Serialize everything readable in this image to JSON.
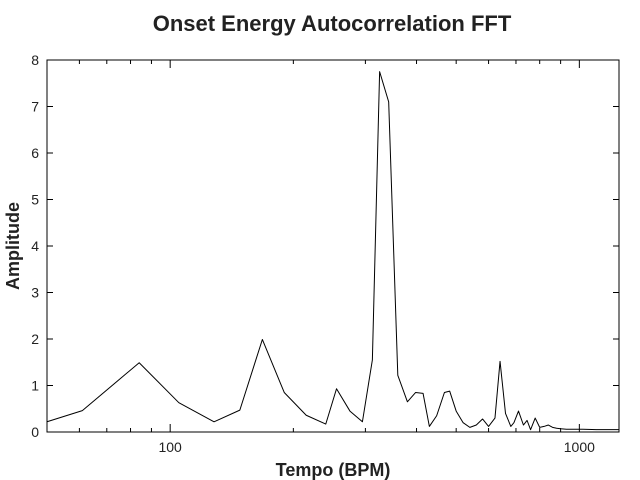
{
  "chart_data": {
    "type": "line",
    "title": "Onset Energy Autocorrelation FFT",
    "xlabel": "Tempo (BPM)",
    "ylabel": "Amplitude",
    "x_scale": "log",
    "xlim": [
      50,
      1250
    ],
    "ylim": [
      0,
      8
    ],
    "x_ticks": [
      100,
      1000
    ],
    "x_tick_labels": [
      "100",
      "1000"
    ],
    "y_ticks": [
      0,
      1,
      2,
      3,
      4,
      5,
      6,
      7,
      8
    ],
    "y_tick_labels": [
      "0",
      "1",
      "2",
      "3",
      "4",
      "5",
      "6",
      "7",
      "8"
    ],
    "grid": false,
    "legend": "none",
    "line_color": "#000000",
    "series": [
      {
        "x": [
          50,
          61,
          84,
          105,
          128,
          148,
          168,
          190,
          215,
          240,
          255,
          275,
          295,
          312,
          325,
          342,
          360,
          380,
          398,
          415,
          430,
          448,
          468,
          482,
          500,
          520,
          540,
          560,
          580,
          600,
          622,
          640,
          660,
          680,
          692,
          710,
          730,
          745,
          760,
          780,
          800,
          820,
          840,
          860,
          880,
          900,
          930,
          970,
          1020,
          1100,
          1200,
          1250
        ],
        "y": [
          0.22,
          0.46,
          1.49,
          0.63,
          0.22,
          0.47,
          1.99,
          0.85,
          0.36,
          0.17,
          0.93,
          0.45,
          0.22,
          1.55,
          7.75,
          7.1,
          1.22,
          0.65,
          0.85,
          0.83,
          0.12,
          0.35,
          0.85,
          0.88,
          0.45,
          0.2,
          0.1,
          0.15,
          0.28,
          0.12,
          0.3,
          1.52,
          0.4,
          0.12,
          0.2,
          0.45,
          0.15,
          0.25,
          0.05,
          0.3,
          0.1,
          0.12,
          0.15,
          0.1,
          0.08,
          0.07,
          0.06,
          0.06,
          0.06,
          0.05,
          0.05,
          0.05
        ]
      }
    ]
  }
}
